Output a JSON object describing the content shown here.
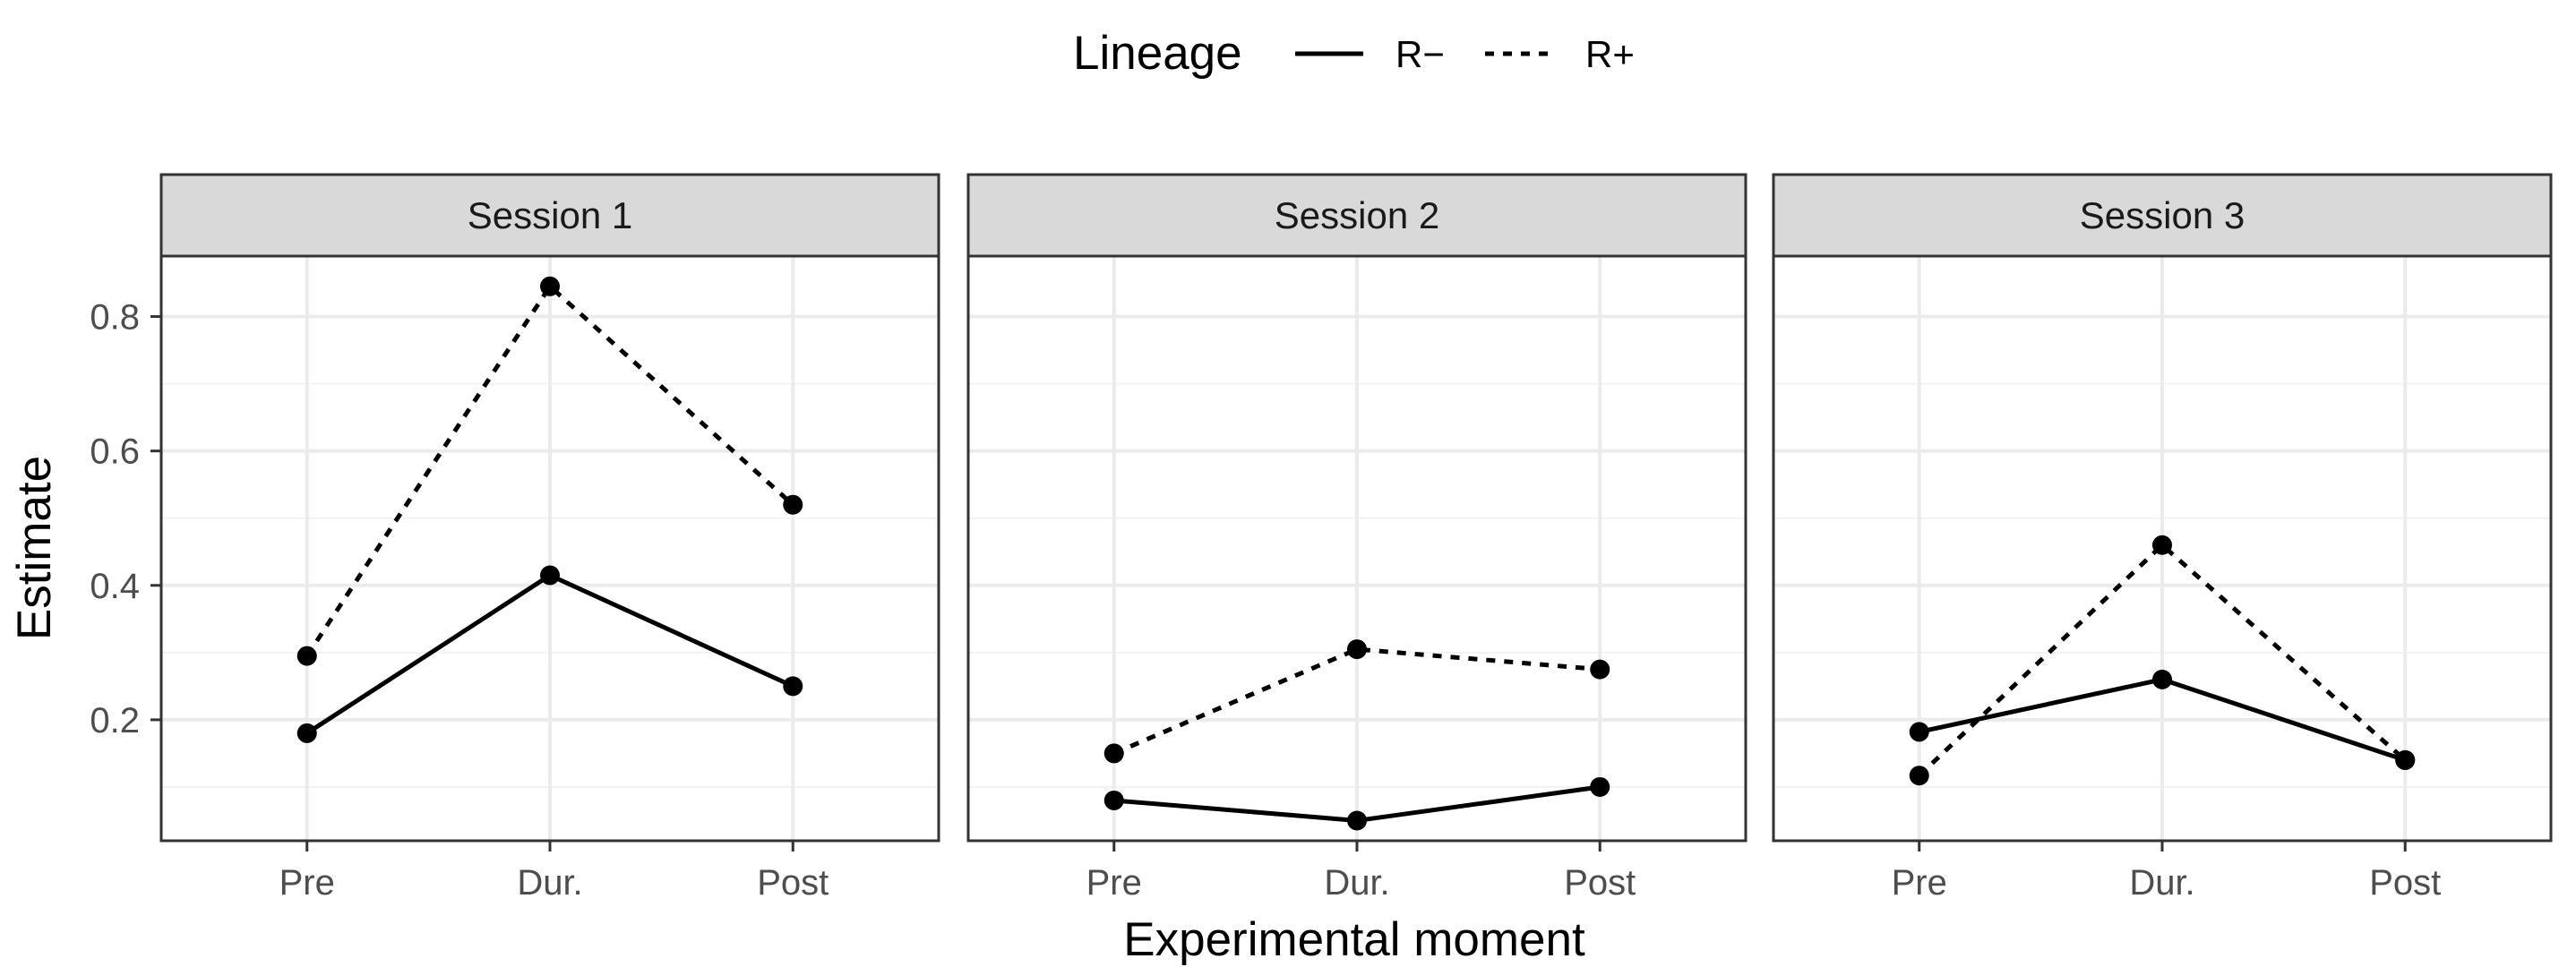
{
  "chart_data": {
    "type": "line",
    "xlabel": "Experimental moment",
    "ylabel": "Estimate",
    "categories": [
      "Pre",
      "Dur.",
      "Post"
    ],
    "ylim": [
      0.02,
      0.89
    ],
    "y_ticks": [
      0.2,
      0.4,
      0.6,
      0.8
    ],
    "y_tick_labels": [
      "0.2",
      "0.4",
      "0.6",
      "0.8"
    ],
    "grid": true,
    "legend": {
      "title": "Lineage",
      "position": "top",
      "entries": [
        {
          "label": "R−",
          "linetype": "solid"
        },
        {
          "label": "R+",
          "linetype": "dotted"
        }
      ]
    },
    "panels": [
      {
        "title": "Session 1",
        "series": [
          {
            "name": "R−",
            "values": [
              0.18,
              0.415,
              0.25
            ]
          },
          {
            "name": "R+",
            "values": [
              0.295,
              0.845,
              0.52
            ]
          }
        ]
      },
      {
        "title": "Session 2",
        "series": [
          {
            "name": "R−",
            "values": [
              0.08,
              0.05,
              0.1
            ]
          },
          {
            "name": "R+",
            "values": [
              0.15,
              0.305,
              0.275
            ]
          }
        ]
      },
      {
        "title": "Session 3",
        "series": [
          {
            "name": "R−",
            "values": [
              0.182,
              0.26,
              0.14
            ]
          },
          {
            "name": "R+",
            "values": [
              0.117,
              0.46,
              0.14
            ]
          }
        ]
      }
    ]
  }
}
